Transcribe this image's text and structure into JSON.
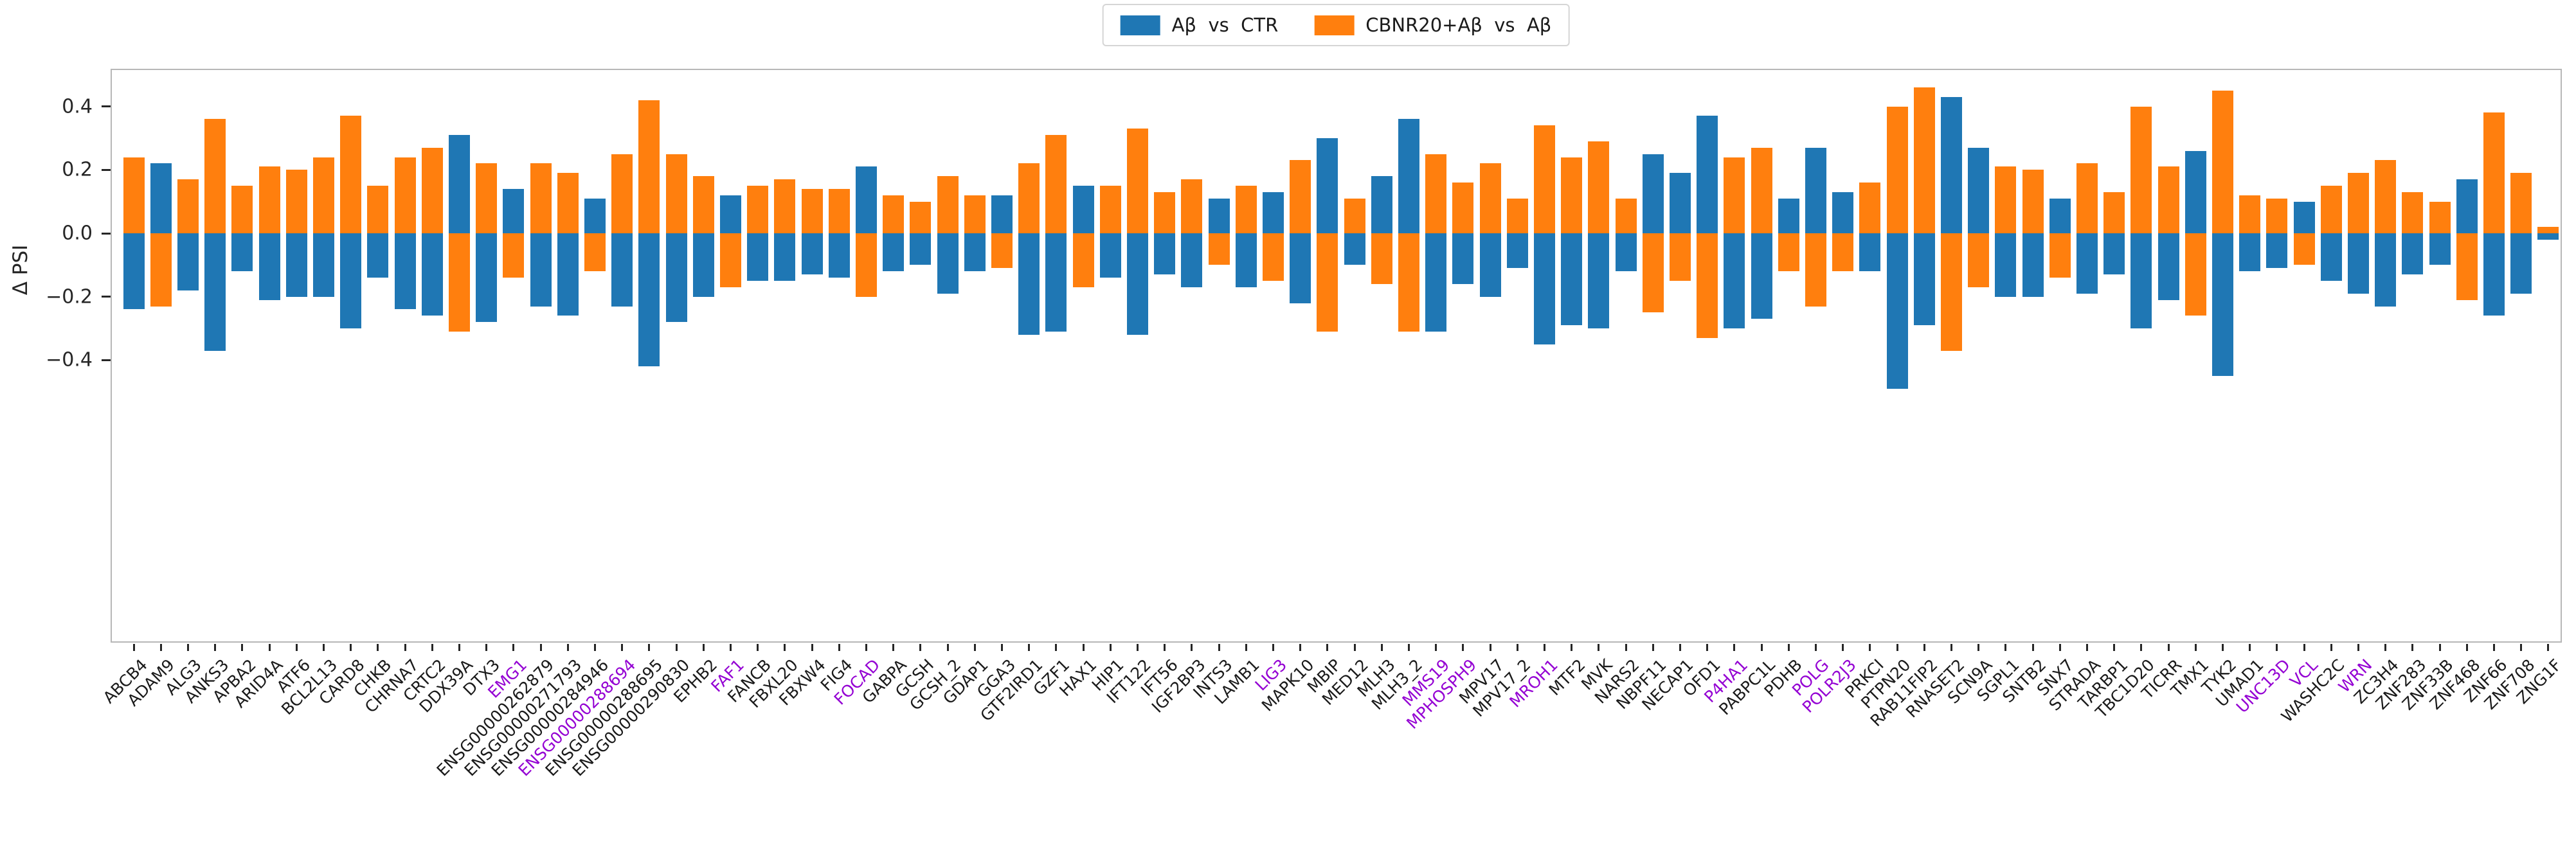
{
  "legend": {
    "items": [
      {
        "label": "Aβ  vs  CTR",
        "color": "#1f77b4",
        "icon": "legend-swatch-blue"
      },
      {
        "label": "CBNR20+Aβ  vs  Aβ",
        "color": "#ff7f0e",
        "icon": "legend-swatch-orange"
      }
    ]
  },
  "axes": {
    "ylabel": "Δ PSI",
    "ytick_labels": [
      {
        "label": "0.4",
        "value": 0.4
      },
      {
        "label": "0.2",
        "value": 0.2
      },
      {
        "label": "0.0",
        "value": 0.0
      },
      {
        "label": "−0.2",
        "value": -0.2
      },
      {
        "label": "−0.4",
        "value": -0.4
      }
    ]
  },
  "colors": {
    "series_blue": "#1f77b4",
    "series_orange": "#ff7f0e",
    "highlight_label": "#9400d3",
    "default_label": "#1a1a1a"
  },
  "chart_data": {
    "type": "bar",
    "title": "",
    "xlabel": "",
    "ylabel": "Δ PSI",
    "grid": false,
    "legend_position": "upper center",
    "bar_layout": "mirrored: both series plotted at the same x position, one positive and one negative per gene",
    "ylim": [
      -1.3,
      0.52
    ],
    "yticks": [
      0.4,
      0.2,
      0.0,
      -0.2,
      -0.4
    ],
    "categories": [
      "ABCB4",
      "ADAM9",
      "ALG3",
      "ANKS3",
      "APBA2",
      "ARID4A",
      "ATF6",
      "BCL2L13",
      "CARD8",
      "CHKB",
      "CHRNA7",
      "CRTC2",
      "DDX39A",
      "DTX3",
      "EMG1",
      "ENSG00000262879",
      "ENSG00000271793",
      "ENSG00000284946",
      "ENSG00000288694",
      "ENSG00000288695",
      "ENSG00000290830",
      "EPHB2",
      "FAF1",
      "FANCB",
      "FBXL20",
      "FBXW4",
      "FIG4",
      "FOCAD",
      "GABPA",
      "GCSH",
      "GCSH_2",
      "GDAP1",
      "GGA3",
      "GTF2IRD1",
      "GZF1",
      "HAX1",
      "HIP1",
      "IFT122",
      "IFT56",
      "IGF2BP3",
      "INTS3",
      "LAMB1",
      "LIG3",
      "MAPK10",
      "MBIP",
      "MED12",
      "MLH3",
      "MLH3_2",
      "MMS19",
      "MPHOSPH9",
      "MPV17",
      "MPV17_2",
      "MROH1",
      "MTF2",
      "MVK",
      "NARS2",
      "NBPF11",
      "NECAP1",
      "OFD1",
      "P4HA1",
      "PABPC1L",
      "PDHB",
      "POLG",
      "POLR2J3",
      "PRKCI",
      "PTPN20",
      "RAB11FIP2",
      "RNASET2",
      "SCN9A",
      "SGPL1",
      "SNTB2",
      "SNX7",
      "STRADA",
      "TARBP1",
      "TBC1D20",
      "TICRR",
      "TMX1",
      "TYK2",
      "UMAD1",
      "UNC13D",
      "VCL",
      "WASHC2C",
      "WRN",
      "ZC3H4",
      "ZNF283",
      "ZNF33B",
      "ZNF468",
      "ZNF66",
      "ZNF708",
      "ZNG1F"
    ],
    "highlighted_categories": [
      "EMG1",
      "ENSG00000288694",
      "FAF1",
      "FOCAD",
      "LIG3",
      "MMS19",
      "MPHOSPH9",
      "MROH1",
      "P4HA1",
      "POLG",
      "POLR2J3",
      "UNC13D",
      "VCL",
      "WRN"
    ],
    "series": [
      {
        "name": "Aβ vs CTR",
        "color": "#1f77b4",
        "values": [
          -0.24,
          0.22,
          -0.18,
          -0.37,
          -0.12,
          -0.21,
          -0.2,
          -0.2,
          -0.3,
          -0.14,
          -0.24,
          -0.26,
          0.31,
          -0.28,
          0.14,
          -0.23,
          -0.26,
          0.11,
          -0.23,
          -0.42,
          -0.28,
          -0.2,
          0.12,
          -0.15,
          -0.15,
          -0.13,
          -0.14,
          0.21,
          -0.12,
          -0.1,
          -0.19,
          -0.12,
          0.12,
          -0.32,
          -0.31,
          0.15,
          -0.14,
          -0.32,
          -0.13,
          -0.17,
          0.11,
          -0.17,
          0.13,
          -0.22,
          0.3,
          -0.1,
          0.18,
          0.36,
          -0.31,
          -0.16,
          -0.2,
          -0.11,
          -0.35,
          -0.29,
          -0.3,
          -0.12,
          0.25,
          0.19,
          0.37,
          -0.3,
          -0.27,
          0.11,
          0.27,
          0.13,
          -0.12,
          -0.49,
          -0.29,
          0.43,
          0.27,
          -0.2,
          -0.2,
          0.11,
          -0.19,
          -0.13,
          -0.3,
          -0.21,
          0.26,
          -0.45,
          -0.12,
          -0.11,
          0.1,
          -0.15,
          -0.19,
          -0.23,
          -0.13,
          -0.1,
          0.17,
          -0.26,
          -0.19,
          -0.02
        ]
      },
      {
        "name": "CBNR20+Aβ vs Aβ",
        "color": "#ff7f0e",
        "values": [
          0.24,
          -0.23,
          0.17,
          0.36,
          0.15,
          0.21,
          0.2,
          0.24,
          0.37,
          0.15,
          0.24,
          0.27,
          -0.31,
          0.22,
          -0.14,
          0.22,
          0.19,
          -0.12,
          0.25,
          0.42,
          0.25,
          0.18,
          -0.17,
          0.15,
          0.17,
          0.14,
          0.14,
          -0.2,
          0.12,
          0.1,
          0.18,
          0.12,
          -0.11,
          0.22,
          0.31,
          -0.17,
          0.15,
          0.33,
          0.13,
          0.17,
          -0.1,
          0.15,
          -0.15,
          0.23,
          -0.31,
          0.11,
          -0.16,
          -0.31,
          0.25,
          0.16,
          0.22,
          0.11,
          0.34,
          0.24,
          0.29,
          0.11,
          -0.25,
          -0.15,
          -0.33,
          0.24,
          0.27,
          -0.12,
          -0.23,
          -0.12,
          0.16,
          0.4,
          0.46,
          -0.37,
          -0.17,
          0.21,
          0.2,
          -0.14,
          0.22,
          0.13,
          0.4,
          0.21,
          -0.26,
          0.45,
          0.12,
          0.11,
          -0.1,
          0.15,
          0.19,
          0.23,
          0.13,
          0.1,
          -0.21,
          0.38,
          0.19,
          0.02
        ]
      }
    ]
  }
}
